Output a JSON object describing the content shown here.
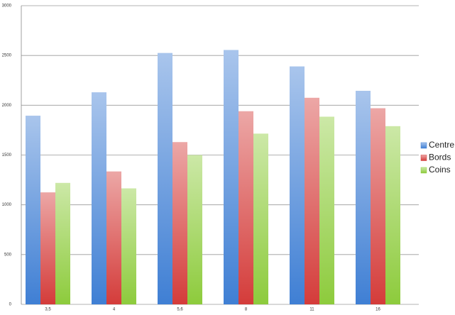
{
  "chart_data": {
    "type": "bar",
    "categories": [
      "3,5",
      "4",
      "5,6",
      "8",
      "11",
      "16"
    ],
    "series": [
      {
        "name": "Centre",
        "color": "#3f7fd4",
        "values": [
          1895,
          2130,
          2525,
          2555,
          2390,
          2145
        ]
      },
      {
        "name": "Bords",
        "color": "#d43c3a",
        "values": [
          1125,
          1335,
          1630,
          1940,
          2075,
          1970
        ]
      },
      {
        "name": "Coins",
        "color": "#8dcb3c",
        "values": [
          1220,
          1165,
          1500,
          1715,
          1885,
          1790
        ]
      }
    ],
    "ylim": [
      0,
      3000
    ],
    "yticks": [
      0,
      500,
      1000,
      1500,
      2000,
      2500,
      3000
    ],
    "grid": true,
    "legend": "right"
  }
}
